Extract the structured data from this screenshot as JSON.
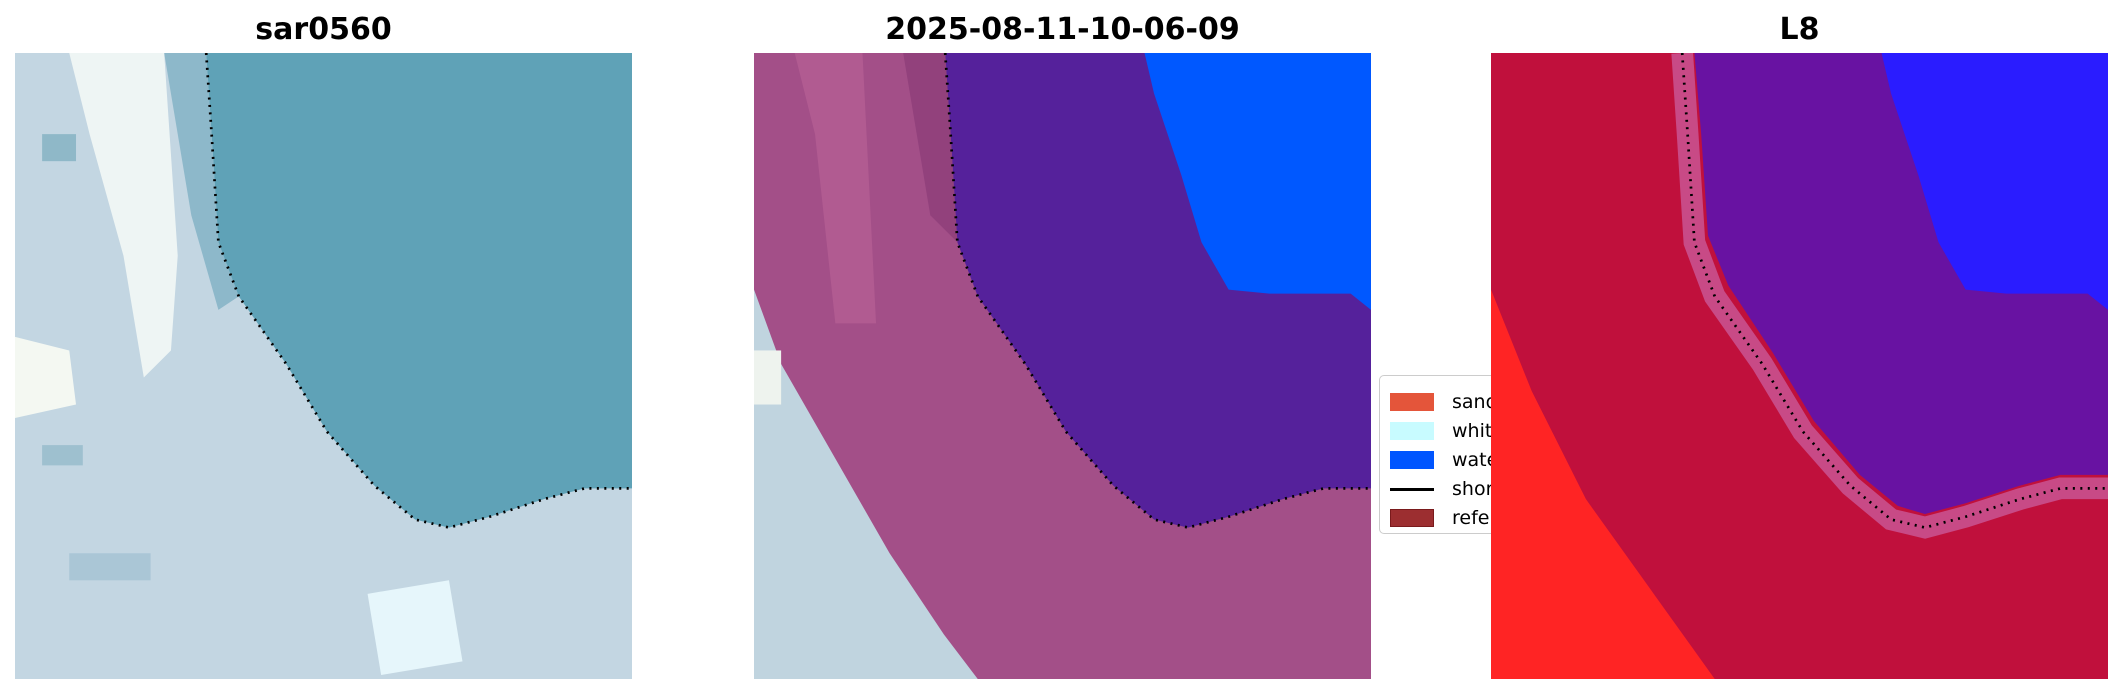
{
  "panels": [
    {
      "title": "sar0560"
    },
    {
      "title": "2025-08-11-10-06-09"
    },
    {
      "title": "L8"
    }
  ],
  "legend": {
    "items": [
      {
        "label": "sand",
        "color": "#e4553a",
        "kind": "patch"
      },
      {
        "label": "white",
        "color": "#c8fbff",
        "kind": "patch"
      },
      {
        "label": "water",
        "color": "#0055ff",
        "kind": "patch"
      },
      {
        "label": "shore",
        "color": "#000000",
        "kind": "line"
      },
      {
        "label": "refer",
        "color": "#9c2e30",
        "kind": "patch"
      }
    ]
  },
  "colors": {
    "rgb_water": "#5fa2b7",
    "rgb_land": "#c3d6e2",
    "class_sand": "#a34f88",
    "class_water": "#55219b",
    "class_blue": "#0058ff",
    "prob_land": "#c0103c",
    "prob_water": "#6812a2",
    "prob_blue": "#2a1cff",
    "prob_red": "#ff2424"
  }
}
